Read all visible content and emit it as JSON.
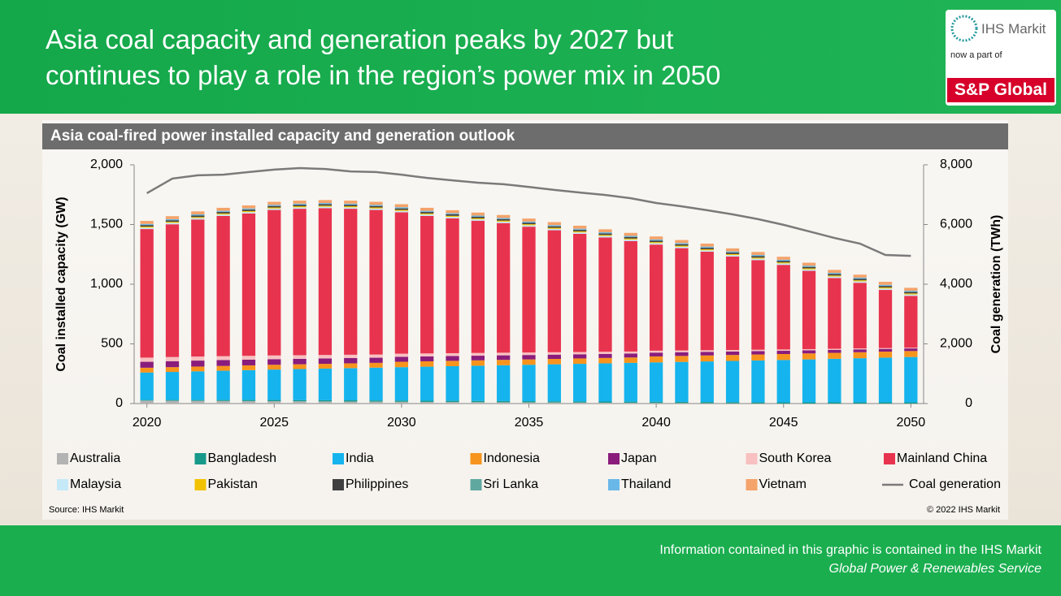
{
  "header": {
    "title_lines": [
      "Asia coal capacity and generation peaks by 2027 but",
      "continues to play a role in the region’s power mix in 2050"
    ],
    "logo": {
      "brand": "IHS Markit",
      "tagline": "now a part of",
      "parent": "S&P Global"
    }
  },
  "chart_data": {
    "type": "bar",
    "stacked": true,
    "title": "Asia coal-fired power installed capacity and generation outlook",
    "ylabel": "Coal installed capacity (GW)",
    "y2label": "Coal generation (TWh)",
    "x": [
      2020,
      2021,
      2022,
      2023,
      2024,
      2025,
      2026,
      2027,
      2028,
      2029,
      2030,
      2031,
      2032,
      2033,
      2034,
      2035,
      2036,
      2037,
      2038,
      2039,
      2040,
      2041,
      2042,
      2043,
      2044,
      2045,
      2046,
      2047,
      2048,
      2049,
      2050
    ],
    "xlim": [
      2019.5,
      2050.5
    ],
    "xticks": [
      2020,
      2025,
      2030,
      2035,
      2040,
      2045,
      2050
    ],
    "ylim": [
      0,
      2000
    ],
    "yticks": [
      0,
      500,
      {
        "value": 1000,
        "label": "1,000"
      },
      {
        "value": 1500,
        "label": "1,500"
      },
      {
        "value": 2000,
        "label": "2,000"
      }
    ],
    "y2lim": [
      0,
      8000
    ],
    "y2ticks": [
      0,
      {
        "value": 2000,
        "label": "2,000"
      },
      {
        "value": 4000,
        "label": "4,000"
      },
      {
        "value": 6000,
        "label": "6,000"
      },
      {
        "value": 8000,
        "label": "8,000"
      }
    ],
    "series": [
      {
        "name": "Australia",
        "color": "#b3b3b3",
        "values": [
          25,
          24,
          23,
          22,
          21,
          20,
          19,
          18,
          17,
          16,
          15,
          14,
          13,
          12,
          11,
          10,
          9,
          8,
          7,
          6,
          5,
          4,
          3,
          2,
          1,
          0,
          0,
          0,
          0,
          0,
          0
        ]
      },
      {
        "name": "Bangladesh",
        "color": "#17998a",
        "values": [
          5,
          6,
          7,
          8,
          9,
          10,
          10,
          10,
          10,
          10,
          10,
          10,
          10,
          10,
          10,
          10,
          10,
          10,
          10,
          10,
          10,
          10,
          10,
          10,
          10,
          10,
          10,
          10,
          10,
          10,
          10
        ]
      },
      {
        "name": "India",
        "color": "#15b4ee",
        "values": [
          230,
          235,
          240,
          245,
          250,
          255,
          260,
          265,
          270,
          275,
          280,
          285,
          290,
          295,
          300,
          305,
          310,
          315,
          320,
          325,
          330,
          335,
          340,
          345,
          350,
          355,
          360,
          365,
          370,
          375,
          380
        ]
      },
      {
        "name": "Indonesia",
        "color": "#f7941d",
        "values": [
          40,
          40,
          40,
          40,
          40,
          40,
          40,
          40,
          40,
          40,
          45,
          45,
          45,
          45,
          45,
          45,
          45,
          45,
          45,
          45,
          50,
          50,
          50,
          50,
          50,
          50,
          50,
          50,
          50,
          50,
          50
        ]
      },
      {
        "name": "Japan",
        "color": "#8a1c7c",
        "values": [
          50,
          50,
          50,
          49,
          48,
          47,
          46,
          45,
          44,
          43,
          42,
          41,
          40,
          39,
          38,
          37,
          36,
          35,
          34,
          33,
          32,
          31,
          30,
          29,
          28,
          27,
          26,
          25,
          24,
          23,
          22
        ]
      },
      {
        "name": "South Korea",
        "color": "#f8c0c0",
        "values": [
          35,
          35,
          34,
          33,
          32,
          31,
          30,
          29,
          28,
          27,
          26,
          25,
          24,
          23,
          22,
          21,
          20,
          19,
          18,
          17,
          16,
          15,
          14,
          13,
          12,
          11,
          10,
          9,
          8,
          7,
          6
        ]
      },
      {
        "name": "Mainland China",
        "color": "#e8334e",
        "values": [
          1077,
          1112,
          1148,
          1175,
          1192,
          1219,
          1227,
          1230,
          1223,
          1211,
          1184,
          1152,
          1130,
          1108,
          1086,
          1054,
          1022,
          990,
          958,
          926,
          889,
          857,
          825,
          783,
          751,
          709,
          656,
          593,
          550,
          487,
          434
        ]
      },
      {
        "name": "Malaysia",
        "color": "#c6e9f8",
        "values": [
          12,
          12,
          12,
          12,
          12,
          12,
          12,
          12,
          12,
          12,
          12,
          12,
          12,
          12,
          12,
          12,
          12,
          12,
          12,
          12,
          12,
          12,
          12,
          12,
          12,
          12,
          12,
          12,
          12,
          12,
          12
        ]
      },
      {
        "name": "Pakistan",
        "color": "#f2c200",
        "values": [
          9,
          9,
          9,
          9,
          9,
          9,
          9,
          9,
          9,
          9,
          9,
          9,
          9,
          9,
          9,
          9,
          9,
          9,
          9,
          9,
          9,
          9,
          9,
          9,
          9,
          9,
          9,
          9,
          9,
          9,
          9
        ]
      },
      {
        "name": "Philippines",
        "color": "#404040",
        "values": [
          12,
          12,
          12,
          12,
          12,
          12,
          12,
          12,
          12,
          12,
          12,
          12,
          12,
          12,
          12,
          12,
          12,
          12,
          12,
          12,
          12,
          12,
          12,
          12,
          12,
          12,
          12,
          12,
          12,
          12,
          12
        ]
      },
      {
        "name": "Sri Lanka",
        "color": "#5fa8a0",
        "values": [
          2,
          2,
          2,
          2,
          2,
          2,
          2,
          2,
          2,
          2,
          2,
          2,
          2,
          2,
          2,
          2,
          2,
          2,
          2,
          2,
          2,
          2,
          2,
          2,
          2,
          2,
          2,
          2,
          2,
          2,
          2
        ]
      },
      {
        "name": "Thailand",
        "color": "#6ab8e8",
        "values": [
          8,
          8,
          8,
          8,
          8,
          8,
          8,
          8,
          8,
          8,
          8,
          8,
          8,
          8,
          8,
          8,
          8,
          8,
          8,
          8,
          8,
          8,
          8,
          8,
          8,
          8,
          8,
          8,
          8,
          8,
          8
        ]
      },
      {
        "name": "Vietnam",
        "color": "#f4a36a",
        "values": [
          25,
          25,
          25,
          25,
          25,
          25,
          25,
          25,
          25,
          25,
          25,
          25,
          25,
          25,
          25,
          25,
          25,
          25,
          25,
          25,
          25,
          25,
          25,
          25,
          25,
          25,
          25,
          25,
          25,
          25,
          25
        ]
      },
      {
        "name": "Coal generation",
        "type": "line",
        "axis": "y2",
        "color": "#7a7a7a",
        "values": [
          7050,
          7540,
          7650,
          7670,
          7760,
          7840,
          7890,
          7860,
          7780,
          7760,
          7670,
          7560,
          7480,
          7400,
          7350,
          7260,
          7160,
          7070,
          6990,
          6880,
          6720,
          6610,
          6480,
          6340,
          6180,
          5990,
          5770,
          5550,
          5360,
          4980,
          4950
        ]
      }
    ]
  },
  "source": "Source: IHS Markit",
  "copyright": "© 2022 IHS Markit",
  "footer": {
    "line1": "Information contained in this graphic is contained in the IHS Markit",
    "line2": "Global Power & Renewables Service"
  }
}
